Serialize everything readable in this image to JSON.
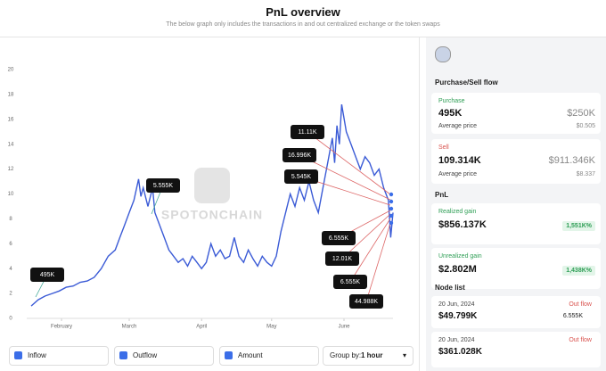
{
  "header": {
    "title": "PnL overview",
    "subtitle": "The below graph only includes the transactions in and out centralized exchange or the token swaps"
  },
  "watermark": "SPOTONCHAIN",
  "chart_data": {
    "type": "line",
    "color": "#3b5bd6",
    "x": [
      0,
      3,
      6,
      9,
      12,
      15,
      18,
      21,
      24,
      27,
      30,
      33,
      36,
      38,
      40,
      42,
      44,
      46,
      47,
      48,
      50,
      52,
      53,
      55,
      57,
      59,
      61,
      63,
      65,
      67,
      69,
      71,
      73,
      75,
      77,
      79,
      81,
      83,
      85,
      87,
      89,
      91,
      93,
      95,
      97,
      99,
      101,
      103,
      105,
      107,
      109,
      111,
      113,
      115,
      117,
      119,
      121,
      123,
      125,
      127,
      129,
      130,
      131,
      132,
      133,
      135,
      137,
      139,
      141,
      143,
      145,
      147,
      149,
      151,
      153,
      154,
      155
    ],
    "values": [
      1.0,
      1.5,
      1.8,
      2.0,
      2.2,
      2.5,
      2.6,
      2.9,
      3.0,
      3.3,
      4.0,
      5.0,
      5.5,
      6.5,
      7.5,
      8.5,
      9.5,
      11.2,
      9.8,
      10.5,
      9.0,
      10.5,
      8.5,
      7.5,
      6.5,
      5.5,
      5.0,
      4.5,
      4.8,
      4.2,
      5.0,
      4.5,
      4.0,
      4.5,
      6.0,
      5.0,
      5.5,
      4.8,
      5.0,
      6.5,
      5.0,
      4.5,
      5.5,
      4.8,
      4.2,
      5.0,
      4.5,
      4.2,
      5.0,
      7.0,
      8.5,
      10.0,
      9.0,
      10.5,
      9.5,
      11.0,
      9.5,
      8.5,
      10.5,
      12.5,
      14.5,
      12.5,
      15.5,
      14.0,
      17.2,
      15.0,
      14.0,
      13.0,
      12.0,
      13.0,
      12.5,
      11.5,
      12.0,
      10.5,
      9.5,
      6.5,
      8.5
    ],
    "xlim": [
      0,
      155
    ],
    "xticks": [
      {
        "value": 13,
        "label": "February"
      },
      {
        "value": 42,
        "label": "March"
      },
      {
        "value": 73,
        "label": "April"
      },
      {
        "value": 103,
        "label": "May"
      },
      {
        "value": 134,
        "label": "June"
      }
    ],
    "ylim": [
      0,
      20
    ],
    "yticks": [
      0,
      2,
      4,
      6,
      8,
      10,
      12,
      14,
      16,
      18,
      20
    ],
    "grid": false,
    "annotations": [
      "495K",
      "5.555K",
      "11.11K",
      "16.996K",
      "5.545K",
      "6.555K",
      "12.01K",
      "6.555K",
      "44.988K"
    ]
  },
  "controls": {
    "checkboxes": [
      "Inflow",
      "Outflow",
      "Amount"
    ],
    "group_by": {
      "label": "Group by:",
      "value": "1 hour"
    }
  },
  "panel": {
    "flow_title": "Purchase/Sell flow",
    "purchase": {
      "label": "Purchase",
      "amount": "495K",
      "usd": "$250K",
      "avg_label": "Average price",
      "avg": "$0.505"
    },
    "sell": {
      "label": "Sell",
      "amount": "109.314K",
      "usd": "$911.346K",
      "avg_label": "Average price",
      "avg": "$8.337"
    },
    "pnl_title": "PnL",
    "realized": {
      "label": "Realized gain",
      "value": "$856.137K",
      "pct": "1,551K%"
    },
    "unrealized": {
      "label": "Unrealized gain",
      "value": "$2.802M",
      "pct": "1,438K%"
    },
    "node_title": "Node list",
    "nodes": [
      {
        "date": "20 Jun, 2024",
        "direction": "Out flow",
        "usd": "$49.799K",
        "amount": "6.555K"
      },
      {
        "date": "20 Jun, 2024",
        "direction": "Out flow",
        "usd": "$361.028K"
      }
    ]
  }
}
